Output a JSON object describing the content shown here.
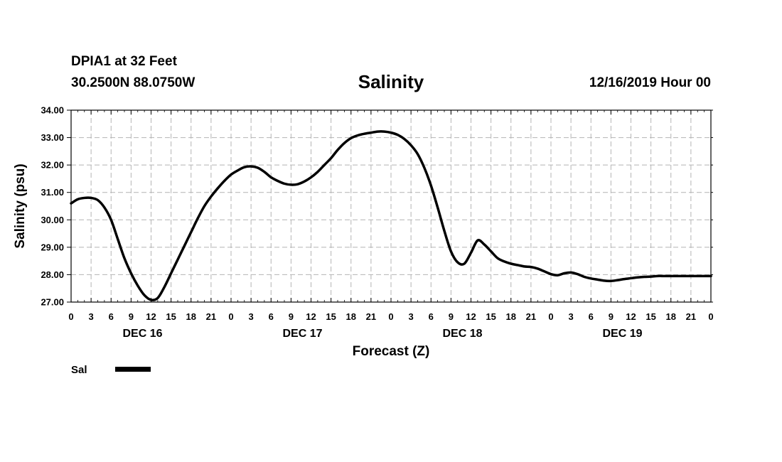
{
  "header": {
    "station": "DPIA1 at 32 Feet",
    "coords": "30.2500N 88.0750W",
    "title": "Salinity",
    "run": "12/16/2019 Hour 00"
  },
  "chart_data": {
    "type": "line",
    "title": "Salinity",
    "xlabel": "Forecast (Z)",
    "ylabel": "Salinity (psu)",
    "x_unit": "hours from 12/16/2019 00Z",
    "xlim": [
      0,
      96
    ],
    "ylim": [
      27.0,
      34.0
    ],
    "y_ticks": [
      "27.00",
      "28.00",
      "29.00",
      "30.00",
      "31.00",
      "32.00",
      "33.00",
      "34.00"
    ],
    "x_tick_labels": [
      "0",
      "3",
      "6",
      "9",
      "12",
      "15",
      "18",
      "21",
      "0",
      "3",
      "6",
      "9",
      "12",
      "15",
      "18",
      "21",
      "0",
      "3",
      "6",
      "9",
      "12",
      "15",
      "18",
      "21",
      "0",
      "3",
      "6",
      "9",
      "12",
      "15",
      "18",
      "21",
      "0"
    ],
    "day_labels": [
      "DEC 16",
      "DEC 17",
      "DEC 18",
      "DEC 19"
    ],
    "grid": true,
    "legend": {
      "position": "bottom-left"
    },
    "series": [
      {
        "name": "Sal",
        "color": "#000000",
        "x": [
          0,
          1,
          2,
          3,
          4,
          5,
          6,
          7,
          8,
          9,
          10,
          11,
          12,
          13,
          14,
          15,
          16,
          17,
          18,
          19,
          20,
          21,
          22,
          23,
          24,
          25,
          26,
          27,
          28,
          29,
          30,
          31,
          32,
          33,
          34,
          35,
          36,
          37,
          38,
          39,
          40,
          41,
          42,
          43,
          44,
          45,
          46,
          47,
          48,
          49,
          50,
          51,
          52,
          53,
          54,
          55,
          56,
          57,
          58,
          59,
          60,
          61,
          62,
          63,
          64,
          65,
          66,
          67,
          68,
          69,
          70,
          71,
          72,
          73,
          74,
          75,
          76,
          77,
          78,
          79,
          80,
          81,
          82,
          83,
          84,
          85,
          86,
          87,
          88,
          89,
          90,
          91,
          92,
          93,
          94,
          95,
          96
        ],
        "y": [
          30.6,
          30.75,
          30.8,
          30.8,
          30.72,
          30.45,
          30.0,
          29.3,
          28.6,
          28.05,
          27.6,
          27.25,
          27.08,
          27.15,
          27.55,
          28.05,
          28.55,
          29.05,
          29.55,
          30.05,
          30.5,
          30.85,
          31.15,
          31.42,
          31.65,
          31.8,
          31.92,
          31.95,
          31.9,
          31.75,
          31.55,
          31.42,
          31.32,
          31.28,
          31.3,
          31.4,
          31.55,
          31.75,
          32.0,
          32.25,
          32.55,
          32.8,
          32.98,
          33.08,
          33.14,
          33.18,
          33.22,
          33.22,
          33.18,
          33.1,
          32.95,
          32.72,
          32.4,
          31.9,
          31.25,
          30.45,
          29.6,
          28.85,
          28.45,
          28.4,
          28.8,
          29.25,
          29.1,
          28.85,
          28.6,
          28.48,
          28.4,
          28.35,
          28.3,
          28.28,
          28.22,
          28.12,
          28.02,
          27.98,
          28.05,
          28.08,
          28.02,
          27.92,
          27.86,
          27.82,
          27.78,
          27.77,
          27.8,
          27.84,
          27.87,
          27.9,
          27.92,
          27.93,
          27.95,
          27.95,
          27.95,
          27.95,
          27.95,
          27.95,
          27.95,
          27.95,
          27.95
        ]
      }
    ]
  },
  "legend": {
    "label": "Sal"
  }
}
